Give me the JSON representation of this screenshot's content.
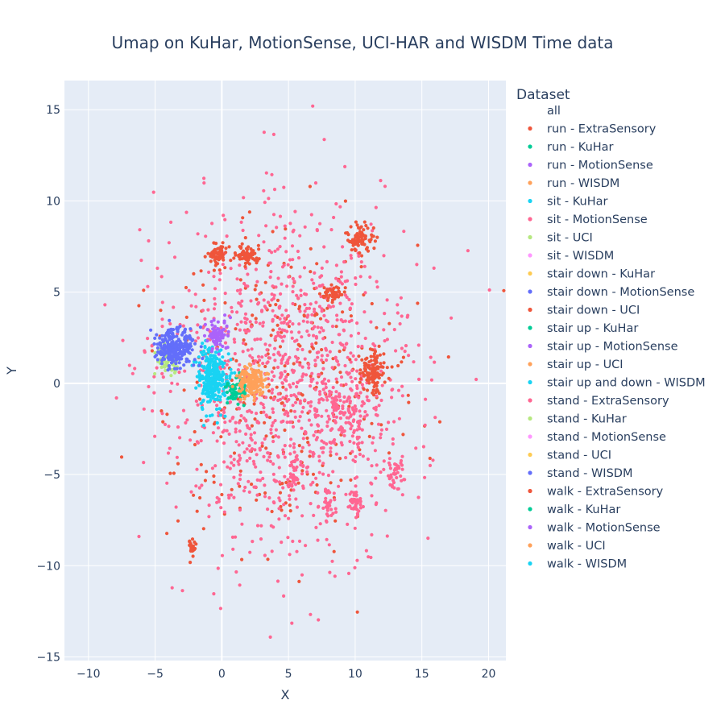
{
  "chart_data": {
    "type": "scatter",
    "title": "Umap on KuHar, MotionSense, UCI-HAR and WISDM   Time data",
    "xlabel": "X",
    "ylabel": "Y",
    "xlim": [
      -11.8,
      21.3
    ],
    "ylim": [
      -15.2,
      16.6
    ],
    "xticks": [
      -10,
      -5,
      0,
      5,
      10,
      15,
      20
    ],
    "yticks": [
      -15,
      -10,
      -5,
      0,
      5,
      10,
      15
    ],
    "grid": true,
    "plot_background": "#e5ecf6",
    "legend": {
      "title": "Dataset",
      "placement": "right",
      "entries": [
        {
          "name": "all",
          "color": null
        },
        {
          "name": "run - ExtraSensory",
          "color": "#EF553B"
        },
        {
          "name": "run - KuHar",
          "color": "#00CC96"
        },
        {
          "name": "run - MotionSense",
          "color": "#AB63FA"
        },
        {
          "name": "run - WISDM",
          "color": "#FFA15A"
        },
        {
          "name": "sit - KuHar",
          "color": "#19D3F3"
        },
        {
          "name": "sit - MotionSense",
          "color": "#FF6692"
        },
        {
          "name": "sit - UCI",
          "color": "#B6E880"
        },
        {
          "name": "sit - WISDM",
          "color": "#FF97FF"
        },
        {
          "name": "stair down - KuHar",
          "color": "#FECB52"
        },
        {
          "name": "stair down - MotionSense",
          "color": "#636EFA"
        },
        {
          "name": "stair down - UCI",
          "color": "#EF553B"
        },
        {
          "name": "stair up - KuHar",
          "color": "#00CC96"
        },
        {
          "name": "stair up - MotionSense",
          "color": "#AB63FA"
        },
        {
          "name": "stair up - UCI",
          "color": "#FFA15A"
        },
        {
          "name": "stair up and down - WISDM",
          "color": "#19D3F3"
        },
        {
          "name": "stand - ExtraSensory",
          "color": "#FF6692"
        },
        {
          "name": "stand - KuHar",
          "color": "#B6E880"
        },
        {
          "name": "stand - MotionSense",
          "color": "#FF97FF"
        },
        {
          "name": "stand - UCI",
          "color": "#FECB52"
        },
        {
          "name": "stand - WISDM",
          "color": "#636EFA"
        },
        {
          "name": "walk - ExtraSensory",
          "color": "#EF553B"
        },
        {
          "name": "walk - KuHar",
          "color": "#00CC96"
        },
        {
          "name": "walk - MotionSense",
          "color": "#AB63FA"
        },
        {
          "name": "walk - UCI",
          "color": "#FFA15A"
        },
        {
          "name": "walk - WISDM",
          "color": "#19D3F3"
        }
      ]
    },
    "clusters": [
      {
        "series": "stand - MotionSense / stair down - MotionSense",
        "center": [
          -3.5,
          2.0
        ],
        "spread": [
          1.1,
          0.9
        ],
        "count": 260,
        "color": "#636EFA"
      },
      {
        "series": "stand - KuHar",
        "center": [
          -4.2,
          1.2
        ],
        "spread": [
          0.6,
          0.8
        ],
        "count": 60,
        "color": "#B6E880"
      },
      {
        "series": "stair up - MotionSense",
        "center": [
          -0.3,
          2.6
        ],
        "spread": [
          0.6,
          0.7
        ],
        "count": 90,
        "color": "#AB63FA"
      },
      {
        "series": "run - WISDM / walk - UCI",
        "center": [
          2.3,
          0.1
        ],
        "spread": [
          0.9,
          0.7
        ],
        "count": 160,
        "color": "#FFA15A"
      },
      {
        "series": "walk - KuHar",
        "center": [
          1.2,
          -0.3
        ],
        "spread": [
          0.7,
          0.6
        ],
        "count": 70,
        "color": "#00CC96"
      },
      {
        "series": "sit - KuHar / walk - WISDM",
        "center": [
          -0.7,
          0.3
        ],
        "spread": [
          0.9,
          1.4
        ],
        "count": 320,
        "color": "#19D3F3"
      },
      {
        "series": "run - ExtraSensory",
        "center": [
          -0.4,
          7.1
        ],
        "spread": [
          0.6,
          0.5
        ],
        "count": 70,
        "color": "#EF553B"
      },
      {
        "series": "run - ExtraSensory",
        "center": [
          2.0,
          7.0
        ],
        "spread": [
          0.9,
          0.4
        ],
        "count": 70,
        "color": "#EF553B"
      },
      {
        "series": "run - ExtraSensory",
        "center": [
          10.3,
          7.9
        ],
        "spread": [
          0.8,
          0.6
        ],
        "count": 80,
        "color": "#EF553B"
      },
      {
        "series": "run - ExtraSensory",
        "center": [
          8.3,
          5.0
        ],
        "spread": [
          0.7,
          0.3
        ],
        "count": 50,
        "color": "#EF553B"
      },
      {
        "series": "walk - ExtraSensory",
        "center": [
          11.2,
          0.6
        ],
        "spread": [
          0.7,
          1.0
        ],
        "count": 120,
        "color": "#EF553B"
      },
      {
        "series": "stand - ExtraSensory",
        "center": [
          9.6,
          -1.5
        ],
        "spread": [
          1.8,
          1.6
        ],
        "count": 110,
        "color": "#FF6692"
      },
      {
        "series": "stand - ExtraSensory",
        "center": [
          10.0,
          -6.5
        ],
        "spread": [
          0.4,
          0.6
        ],
        "count": 40,
        "color": "#FF6692"
      },
      {
        "series": "stand - ExtraSensory",
        "center": [
          5.3,
          -5.0
        ],
        "spread": [
          0.3,
          0.9
        ],
        "count": 30,
        "color": "#FF6692"
      },
      {
        "series": "stand - ExtraSensory",
        "center": [
          8.0,
          -6.5
        ],
        "spread": [
          0.4,
          1.2
        ],
        "count": 30,
        "color": "#FF6692"
      },
      {
        "series": "stand - ExtraSensory",
        "center": [
          13.0,
          -5.0
        ],
        "spread": [
          0.7,
          0.8
        ],
        "count": 40,
        "color": "#FF6692"
      },
      {
        "series": "walk - ExtraSensory",
        "center": [
          -2.2,
          -9.0
        ],
        "spread": [
          0.2,
          0.4
        ],
        "count": 25,
        "color": "#EF553B"
      },
      {
        "series": "stand - ExtraSensory",
        "center": [
          4.8,
          0.0
        ],
        "spread": [
          7.8,
          7.8
        ],
        "count": 1100,
        "color": "#FF6692"
      },
      {
        "series": "run - ExtraSensory",
        "center": [
          4.8,
          0.0
        ],
        "spread": [
          7.8,
          7.8
        ],
        "count": 320,
        "color": "#EF553B"
      }
    ]
  }
}
